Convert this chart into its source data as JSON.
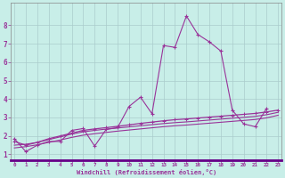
{
  "xlabel": "Windchill (Refroidissement éolien,°C)",
  "background_color": "#c8eee8",
  "grid_color": "#aacccc",
  "line_color": "#993399",
  "x_values": [
    0,
    1,
    2,
    3,
    4,
    5,
    6,
    7,
    8,
    9,
    10,
    11,
    12,
    13,
    14,
    15,
    16,
    17,
    18,
    19,
    20,
    21,
    22,
    23
  ],
  "line1_x": [
    0,
    1,
    2,
    3,
    4,
    5,
    6,
    7,
    8,
    9,
    10,
    11,
    12,
    13,
    14,
    15,
    16,
    17,
    18,
    19,
    20,
    21,
    22
  ],
  "line1_y": [
    1.85,
    1.15,
    1.5,
    1.7,
    1.7,
    2.3,
    2.4,
    1.45,
    2.35,
    2.45,
    3.6,
    4.1,
    3.2,
    6.9,
    6.8,
    8.5,
    7.5,
    7.1,
    6.6,
    3.4,
    2.65,
    2.5,
    3.5
  ],
  "line2_x": [
    0,
    1,
    2,
    3,
    4,
    5,
    6,
    7,
    8,
    9,
    10,
    11,
    12,
    13,
    14,
    15,
    16,
    17,
    18,
    19,
    20,
    21,
    22,
    23
  ],
  "line2_y": [
    1.7,
    1.5,
    1.65,
    1.85,
    2.0,
    2.15,
    2.3,
    2.38,
    2.45,
    2.52,
    2.6,
    2.68,
    2.75,
    2.82,
    2.88,
    2.92,
    2.97,
    3.02,
    3.07,
    3.12,
    3.17,
    3.22,
    3.3,
    3.4
  ],
  "line3_x": [
    0,
    1,
    2,
    3,
    4,
    5,
    6,
    7,
    8,
    9,
    10,
    11,
    12,
    13,
    14,
    15,
    16,
    17,
    18,
    19,
    20,
    21,
    22,
    23
  ],
  "line3_y": [
    1.5,
    1.55,
    1.65,
    1.8,
    1.95,
    2.1,
    2.22,
    2.3,
    2.37,
    2.43,
    2.49,
    2.55,
    2.61,
    2.67,
    2.72,
    2.76,
    2.81,
    2.86,
    2.91,
    2.96,
    3.01,
    3.06,
    3.15,
    3.28
  ],
  "line4_x": [
    0,
    1,
    2,
    3,
    4,
    5,
    6,
    7,
    8,
    9,
    10,
    11,
    12,
    13,
    14,
    15,
    16,
    17,
    18,
    19,
    20,
    21,
    22,
    23
  ],
  "line4_y": [
    1.35,
    1.42,
    1.52,
    1.65,
    1.78,
    1.92,
    2.04,
    2.12,
    2.19,
    2.26,
    2.32,
    2.38,
    2.44,
    2.5,
    2.55,
    2.59,
    2.64,
    2.69,
    2.74,
    2.79,
    2.84,
    2.89,
    2.98,
    3.12
  ],
  "ylim": [
    0.7,
    9.2
  ],
  "xlim": [
    -0.3,
    23.3
  ],
  "yticks": [
    1,
    2,
    3,
    4,
    5,
    6,
    7,
    8
  ],
  "xticks": [
    0,
    1,
    2,
    3,
    4,
    5,
    6,
    7,
    8,
    9,
    10,
    11,
    12,
    13,
    14,
    15,
    16,
    17,
    18,
    19,
    20,
    21,
    22,
    23
  ]
}
